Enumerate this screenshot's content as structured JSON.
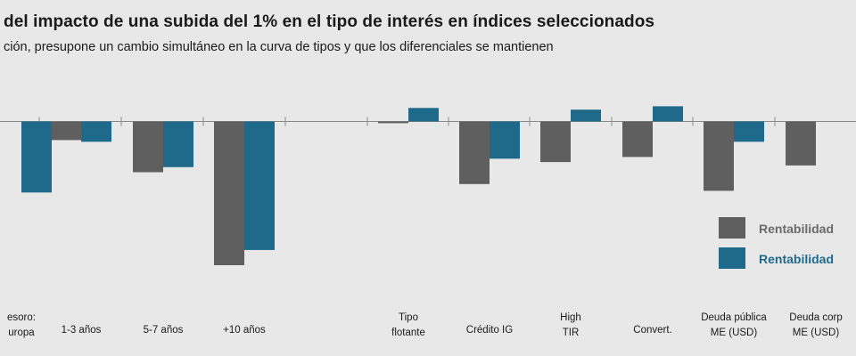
{
  "chart_data": {
    "type": "bar",
    "title": "del impacto de una subida del 1% en el tipo de interés en índices seleccionados",
    "subtitle": "ción, presupone un cambio simultáneo en la curva de tipos y que los diferenciales se mantienen",
    "categories": [
      [
        "esoro:",
        "uropa"
      ],
      [
        "1-3 años"
      ],
      [
        "5-7 años"
      ],
      [
        "+10 años"
      ],
      [
        "Tipo",
        "flotante"
      ],
      [
        "Crédito IG"
      ],
      [
        "High",
        "TIR"
      ],
      [
        "Convert."
      ],
      [
        "Deuda pública",
        "ME (USD)"
      ],
      [
        "Deuda corp",
        "ME (USD)"
      ]
    ],
    "series": [
      {
        "name": "Rentabilidad",
        "color": "#5f5f5f",
        "values": [
          null,
          -1.1,
          -3.0,
          -8.5,
          -0.1,
          -3.7,
          -2.4,
          -2.1,
          -4.1,
          -2.6
        ]
      },
      {
        "name": "Rentabilidad",
        "color": "#1f6a8a",
        "values": [
          -4.2,
          -1.2,
          -2.7,
          -7.6,
          0.8,
          -2.2,
          0.7,
          0.9,
          -1.2,
          null
        ]
      }
    ],
    "ylim": [
      -10,
      2
    ],
    "grid": false,
    "legend_position": "right"
  }
}
